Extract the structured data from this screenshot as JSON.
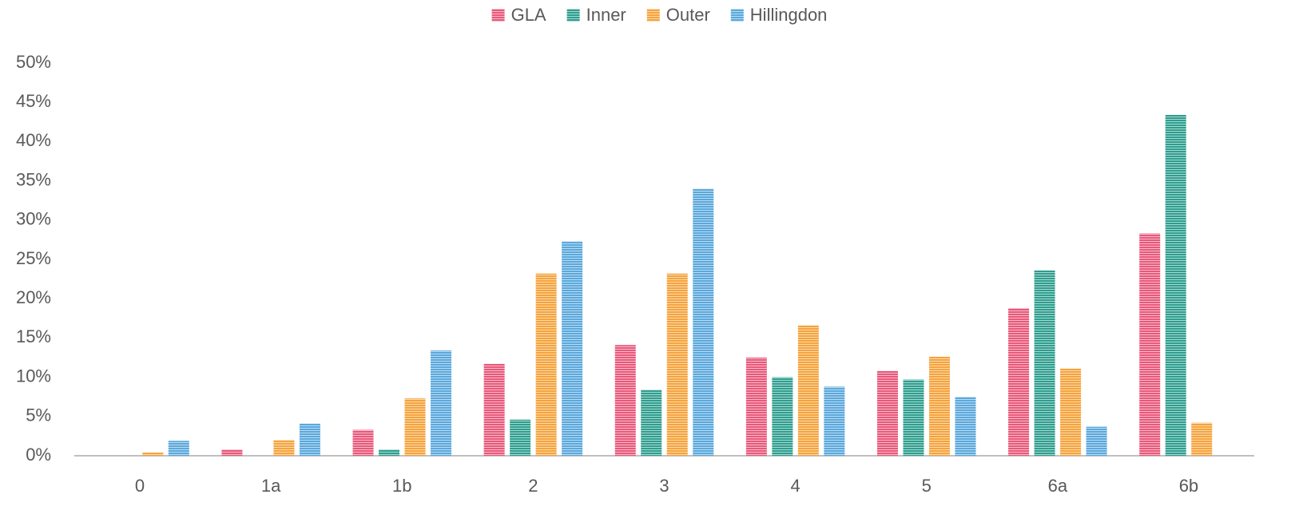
{
  "chart_data": {
    "type": "bar",
    "categories": [
      "0",
      "1a",
      "1b",
      "2",
      "3",
      "4",
      "5",
      "6a",
      "6b"
    ],
    "series": [
      {
        "name": "GLA",
        "color": "#e8587a",
        "values": [
          0,
          0.8,
          3.3,
          11.7,
          14.1,
          12.5,
          10.8,
          18.8,
          28.3
        ]
      },
      {
        "name": "Inner",
        "color": "#2e9e8e",
        "values": [
          0,
          0,
          0.8,
          4.6,
          8.4,
          10.0,
          9.7,
          23.6,
          43.4
        ]
      },
      {
        "name": "Outer",
        "color": "#f5a33b",
        "values": [
          0.4,
          2.0,
          7.3,
          23.2,
          23.2,
          16.6,
          12.6,
          11.1,
          4.2
        ]
      },
      {
        "name": "Hillingdon",
        "color": "#5aa8dc",
        "values": [
          1.9,
          4.1,
          13.4,
          27.3,
          34.0,
          8.8,
          7.5,
          3.7,
          0
        ]
      }
    ],
    "ylim": [
      0,
      50
    ],
    "yticks": [
      {
        "value": 0,
        "label": "0%"
      },
      {
        "value": 5,
        "label": "5%"
      },
      {
        "value": 10,
        "label": "10%"
      },
      {
        "value": 15,
        "label": "15%"
      },
      {
        "value": 20,
        "label": "20%"
      },
      {
        "value": 25,
        "label": "25%"
      },
      {
        "value": 30,
        "label": "30%"
      },
      {
        "value": 35,
        "label": "35%"
      },
      {
        "value": 40,
        "label": "40%"
      },
      {
        "value": 45,
        "label": "45%"
      },
      {
        "value": 50,
        "label": "50%"
      }
    ],
    "grid": false,
    "legend": "top"
  }
}
